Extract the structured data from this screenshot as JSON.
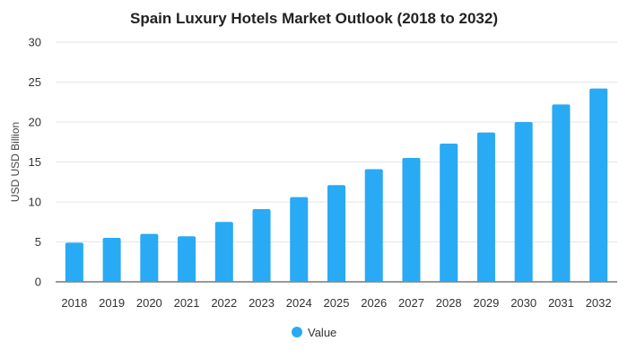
{
  "chart_data": {
    "type": "bar",
    "title": "Spain Luxury Hotels Market Outlook (2018 to 2032)",
    "xlabel": "",
    "ylabel": "USD USD Billion",
    "ylim": [
      0,
      30
    ],
    "yticks": [
      0,
      5,
      10,
      15,
      20,
      25,
      30
    ],
    "categories": [
      "2018",
      "2019",
      "2020",
      "2021",
      "2022",
      "2023",
      "2024",
      "2025",
      "2026",
      "2027",
      "2028",
      "2029",
      "2030",
      "2031",
      "2032"
    ],
    "series": [
      {
        "name": "Value",
        "color": "#29aaf4",
        "values": [
          4.9,
          5.5,
          6.0,
          5.7,
          7.5,
          9.1,
          10.6,
          12.1,
          14.1,
          15.5,
          17.3,
          18.7,
          20.0,
          22.2,
          24.2
        ]
      }
    ],
    "grid": true,
    "legend_position": "bottom-center"
  }
}
